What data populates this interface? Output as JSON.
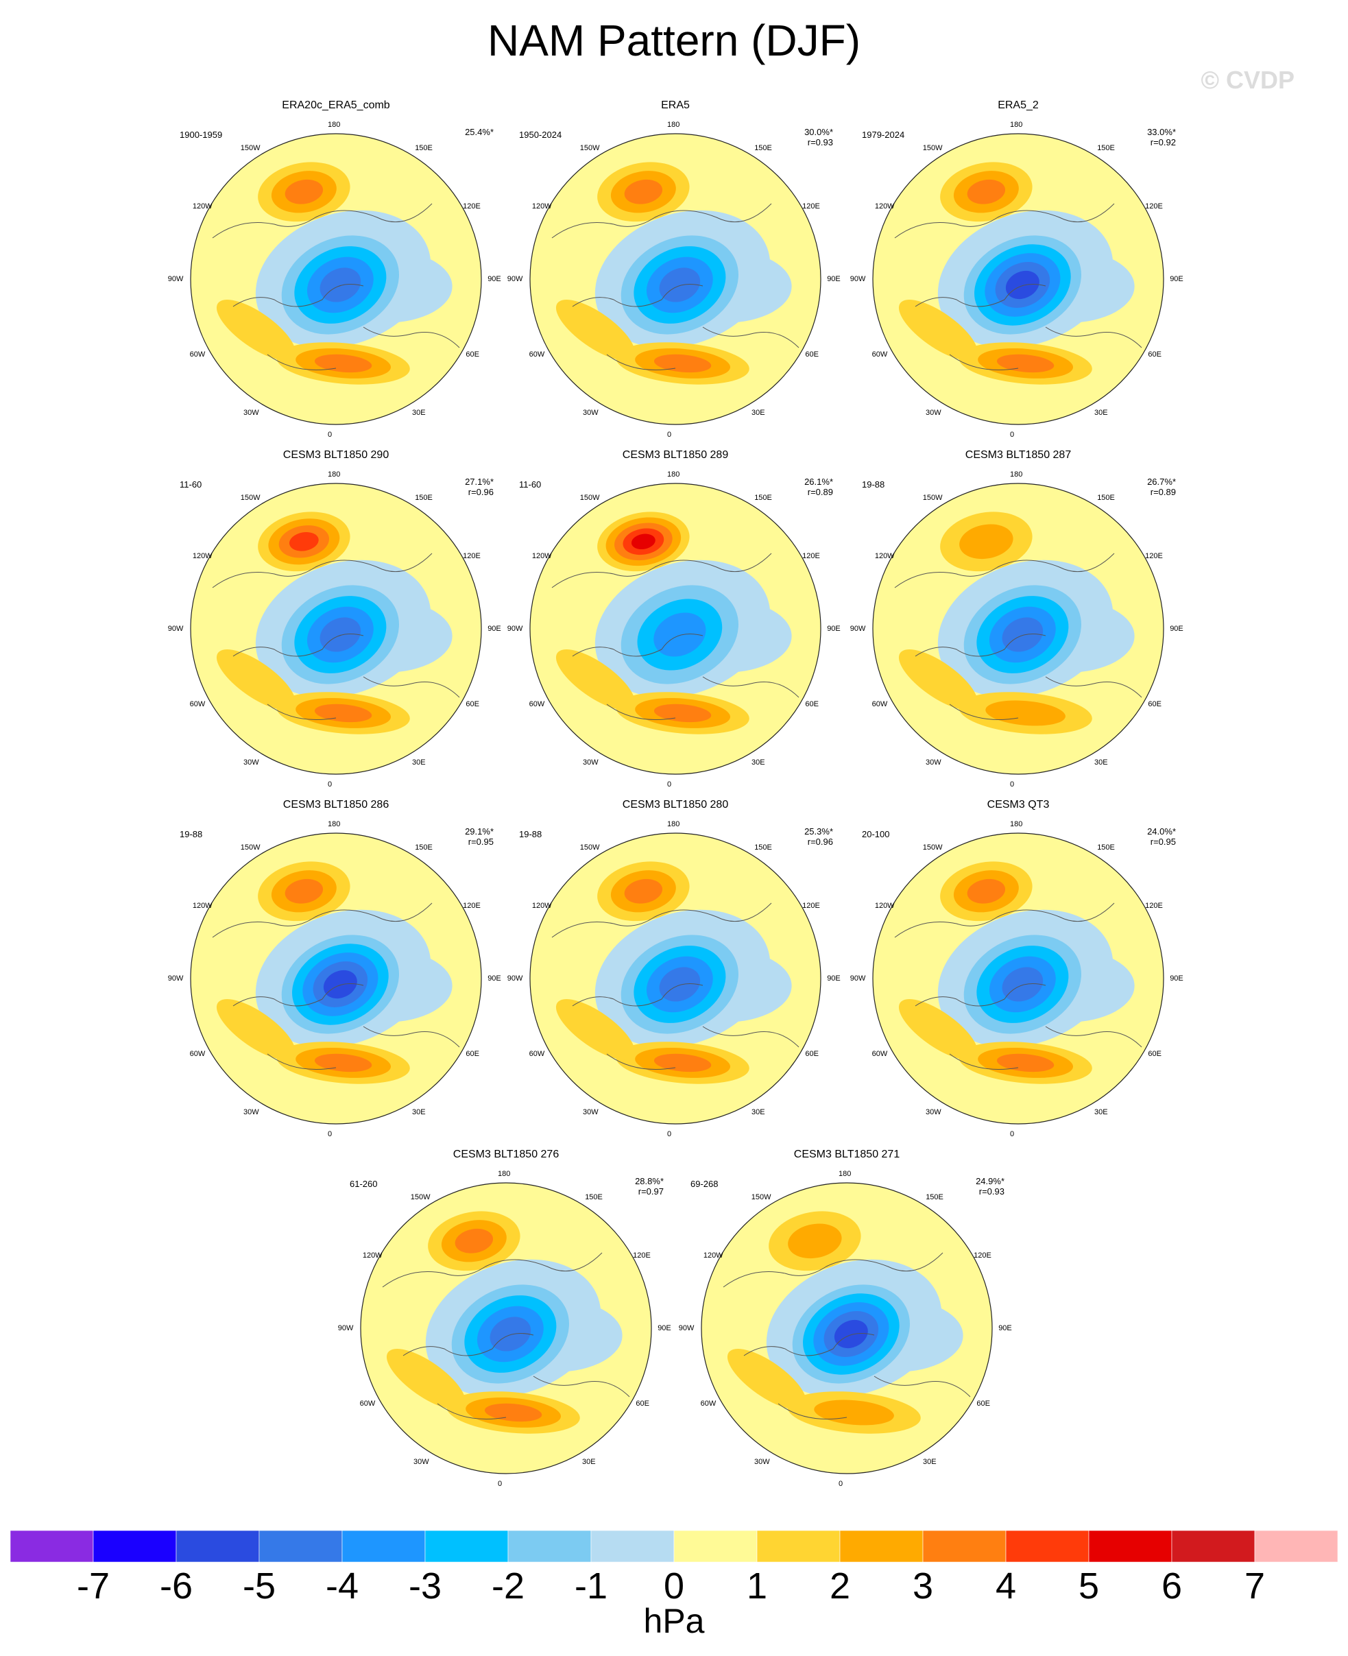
{
  "page": {
    "title": "NAM Pattern (DJF)",
    "watermark": "© CVDP"
  },
  "map_labels": {
    "n": "180",
    "s": "0",
    "nw": "150W",
    "ne": "150E",
    "wnw": "120W",
    "ene": "120E",
    "w": "90W",
    "e": "90E",
    "wsw": "60W",
    "ese": "60E",
    "sw": "30W",
    "se": "30E"
  },
  "chart_data": {
    "type": "heatmap",
    "projection": "north polar stereographic",
    "units": "hPa",
    "levels": [
      -7,
      -6,
      -5,
      -4,
      -3,
      -2,
      -1,
      0,
      1,
      2,
      3,
      4,
      5,
      6,
      7
    ],
    "level_labels": [
      "-7",
      "-6",
      "-5",
      "-4",
      "-3",
      "-2",
      "-1",
      "0",
      "1",
      "2",
      "3",
      "4",
      "5",
      "6",
      "7"
    ],
    "colors": [
      "#8a2be2",
      "#1a00ff",
      "#2a4be0",
      "#3579e8",
      "#1e96ff",
      "#00c0ff",
      "#7ccbf2",
      "#b6dcf2",
      "#fffa96",
      "#ffd532",
      "#ffaa00",
      "#ff7f11",
      "#ff3b0a",
      "#e60000",
      "#d21a1e",
      "#ffb6b6"
    ],
    "panels": [
      {
        "title": "ERA20c_ERA5_comb",
        "years": "1900-1959",
        "pct": "25.4%*",
        "r": "",
        "pos_max": 3,
        "neg_min": -4
      },
      {
        "title": "ERA5",
        "years": "1950-2024",
        "pct": "30.0%*",
        "r": "r=0.93",
        "pos_max": 3,
        "neg_min": -4
      },
      {
        "title": "ERA5_2",
        "years": "1979-2024",
        "pct": "33.0%*",
        "r": "r=0.92",
        "pos_max": 3,
        "neg_min": -5
      },
      {
        "title": "CESM3 BLT1850 290",
        "years": "11-60",
        "pct": "27.1%*",
        "r": "r=0.96",
        "pos_max": 4,
        "neg_min": -4
      },
      {
        "title": "CESM3 BLT1850 289",
        "years": "11-60",
        "pct": "26.1%*",
        "r": "r=0.89",
        "pos_max": 5,
        "neg_min": -3
      },
      {
        "title": "CESM3 BLT1850 287",
        "years": "19-88",
        "pct": "26.7%*",
        "r": "r=0.89",
        "pos_max": 2,
        "neg_min": -4
      },
      {
        "title": "CESM3 BLT1850 286",
        "years": "19-88",
        "pct": "29.1%*",
        "r": "r=0.95",
        "pos_max": 3,
        "neg_min": -5
      },
      {
        "title": "CESM3 BLT1850 280",
        "years": "19-88",
        "pct": "25.3%*",
        "r": "r=0.96",
        "pos_max": 3,
        "neg_min": -4
      },
      {
        "title": "CESM3 QT3",
        "years": "20-100",
        "pct": "24.0%*",
        "r": "r=0.95",
        "pos_max": 3,
        "neg_min": -4
      },
      {
        "title": "CESM3 BLT1850 276",
        "years": "61-260",
        "pct": "28.8%*",
        "r": "r=0.97",
        "pos_max": 3,
        "neg_min": -4
      },
      {
        "title": "CESM3 BLT1850 271",
        "years": "69-268",
        "pct": "24.9%*",
        "r": "r=0.93",
        "pos_max": 2,
        "neg_min": -5
      }
    ]
  }
}
